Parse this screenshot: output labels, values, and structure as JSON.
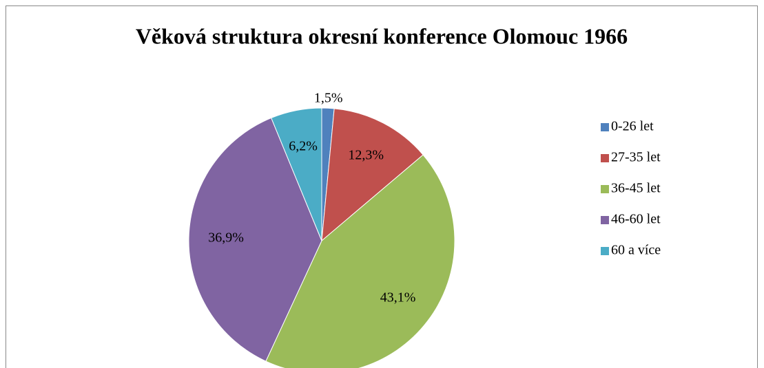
{
  "chart_data": {
    "type": "pie",
    "title": "Věková struktura okresní konference Olomouc 1966",
    "categories": [
      "0-26 let",
      "27-35 let",
      "36-45 let",
      "46-60 let",
      "60 a více"
    ],
    "values": [
      1.5,
      12.3,
      43.1,
      36.9,
      6.2
    ],
    "value_labels": [
      "1,5%",
      "12,3%",
      "43,1%",
      "36,9%",
      "6,2%"
    ],
    "colors": [
      "#4f81bd",
      "#c0504d",
      "#9bbb59",
      "#8064a2",
      "#4bacc6"
    ],
    "legend": "right"
  }
}
